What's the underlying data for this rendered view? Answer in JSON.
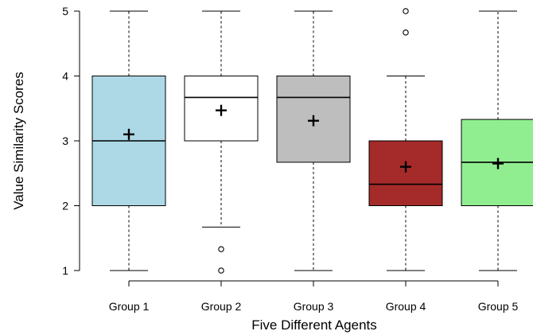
{
  "chart_data": {
    "type": "boxplot",
    "title": "",
    "xlabel": "Five Different Agents",
    "ylabel": "Value Similarity Scores",
    "ylim": [
      1,
      5
    ],
    "yticks": [
      "1",
      "2",
      "3",
      "4",
      "5"
    ],
    "grid": false,
    "categories": [
      "Group 1",
      "Group 2",
      "Group 3",
      "Group 4",
      "Group 5"
    ],
    "boxes": [
      {
        "category": "Group 1",
        "whisker_low": 1,
        "q1": 2,
        "median": 3.0,
        "q3": 4,
        "whisker_high": 5,
        "mean": 3.1,
        "outliers": [],
        "color": "#ADD8E6"
      },
      {
        "category": "Group 2",
        "whisker_low": 1.67,
        "q1": 3,
        "median": 3.67,
        "q3": 4,
        "whisker_high": 5,
        "mean": 3.47,
        "outliers": [
          1.33,
          1.0
        ],
        "color": "#FFFFFF"
      },
      {
        "category": "Group 3",
        "whisker_low": 1,
        "q1": 2.67,
        "median": 3.67,
        "q3": 4,
        "whisker_high": 5,
        "mean": 3.31,
        "outliers": [],
        "color": "#BEBEBE"
      },
      {
        "category": "Group 4",
        "whisker_low": 1,
        "q1": 2,
        "median": 2.33,
        "q3": 3,
        "whisker_high": 4,
        "mean": 2.6,
        "outliers": [
          4.67,
          5.0
        ],
        "color": "#A52A2A"
      },
      {
        "category": "Group 5",
        "whisker_low": 1,
        "q1": 2,
        "median": 2.67,
        "q3": 3.33,
        "whisker_high": 5,
        "mean": 2.65,
        "outliers": [],
        "color": "#90EE90"
      }
    ]
  }
}
